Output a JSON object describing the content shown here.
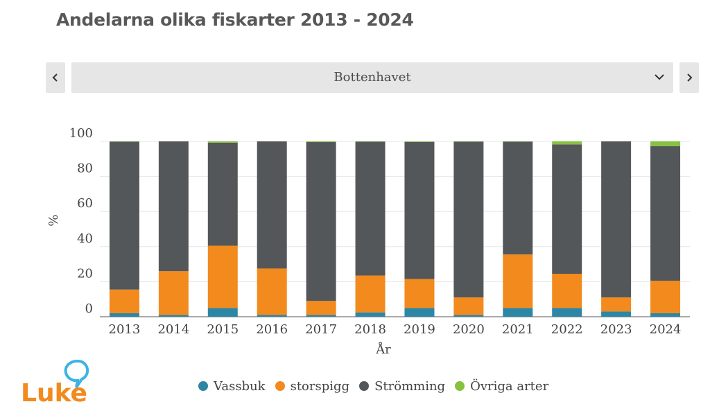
{
  "title": "Andelarna olika fiskarter 2013 - 2024",
  "selector": {
    "selected": "Bottenhavet"
  },
  "icons": {
    "prev": "chevron-left-icon",
    "next": "chevron-right-icon",
    "dropdown": "chevron-down-icon"
  },
  "logo": {
    "text": "Luke"
  },
  "colors": {
    "Vassbuk": "#2e86a5",
    "storspigg": "#f28a1d",
    "Strömming": "#545759",
    "Övriga arter": "#86c23f",
    "logo_orange": "#f28a1d",
    "logo_blue": "#3db3e3"
  },
  "chart_data": {
    "type": "bar",
    "stacked": true,
    "categories": [
      "2013",
      "2014",
      "2015",
      "2016",
      "2017",
      "2018",
      "2019",
      "2020",
      "2021",
      "2022",
      "2023",
      "2024"
    ],
    "series": [
      {
        "name": "Vassbuk",
        "values": [
          2,
          1,
          5,
          1,
          1,
          2.5,
          5,
          1,
          5,
          5,
          3,
          2
        ]
      },
      {
        "name": "storspigg",
        "values": [
          13.5,
          25,
          35.5,
          26.5,
          8,
          21,
          16.5,
          10,
          30.5,
          19.5,
          8,
          18.5
        ]
      },
      {
        "name": "Strömming",
        "values": [
          84.3,
          74,
          58.8,
          72.5,
          90.6,
          76.3,
          78.2,
          88.8,
          64.3,
          73.8,
          89,
          76.8
        ]
      },
      {
        "name": "Övriga arter",
        "values": [
          0.2,
          0,
          0.7,
          0,
          0.4,
          0.2,
          0.3,
          0.2,
          0.2,
          1.7,
          0,
          2.7
        ]
      }
    ],
    "ylim": [
      0,
      100
    ],
    "yticks": [
      0,
      20,
      40,
      60,
      80,
      100
    ],
    "xlabel": "År",
    "ylabel": "%",
    "grid": true,
    "legend_position": "bottom"
  }
}
